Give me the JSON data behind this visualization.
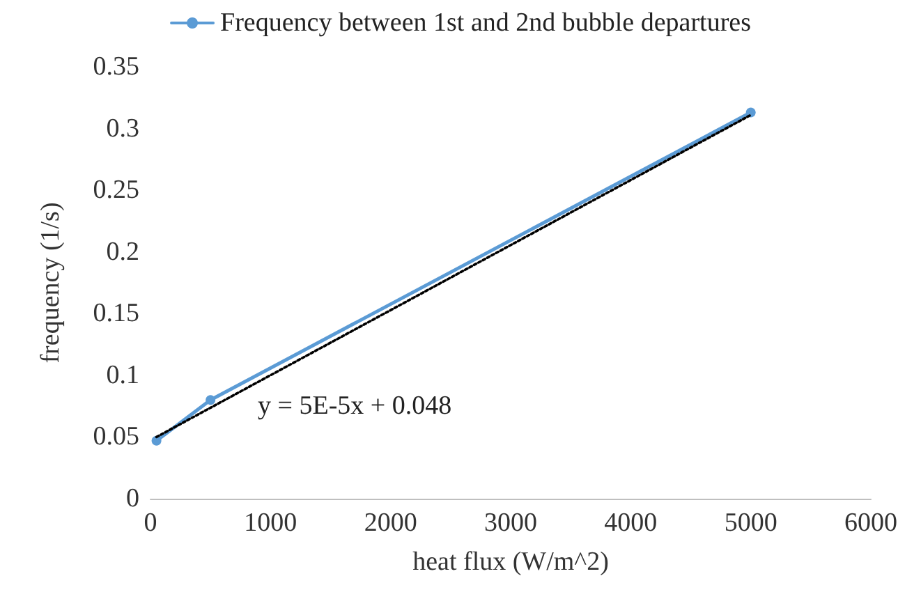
{
  "chart_data": {
    "type": "line",
    "xlabel": "heat flux (W/m^2)",
    "ylabel": "frequency (1/s)",
    "x": [
      50,
      500,
      5000
    ],
    "series": [
      {
        "name": "Frequency between 1st and 2nd bubble departures",
        "color": "#5b9bd5",
        "values": [
          0.047,
          0.08,
          0.313
        ],
        "marker": "circle",
        "line_style": "solid"
      },
      {
        "type": "line",
        "color": "#000000",
        "x": [
          50,
          5000
        ],
        "values": [
          0.05,
          0.311
        ],
        "marker": "none",
        "line_style": "dotted"
      }
    ],
    "xlim": [
      0,
      6000
    ],
    "xticks": [
      0,
      1000,
      2000,
      3000,
      4000,
      5000,
      6000
    ],
    "ylim": [
      0,
      0.35
    ],
    "yticks": [
      0,
      0.05,
      0.1,
      0.15,
      0.2,
      0.25,
      0.3,
      0.35
    ],
    "grid": false,
    "legend": "top",
    "annotations": [
      "y = 5E-5x + 0.048"
    ]
  }
}
